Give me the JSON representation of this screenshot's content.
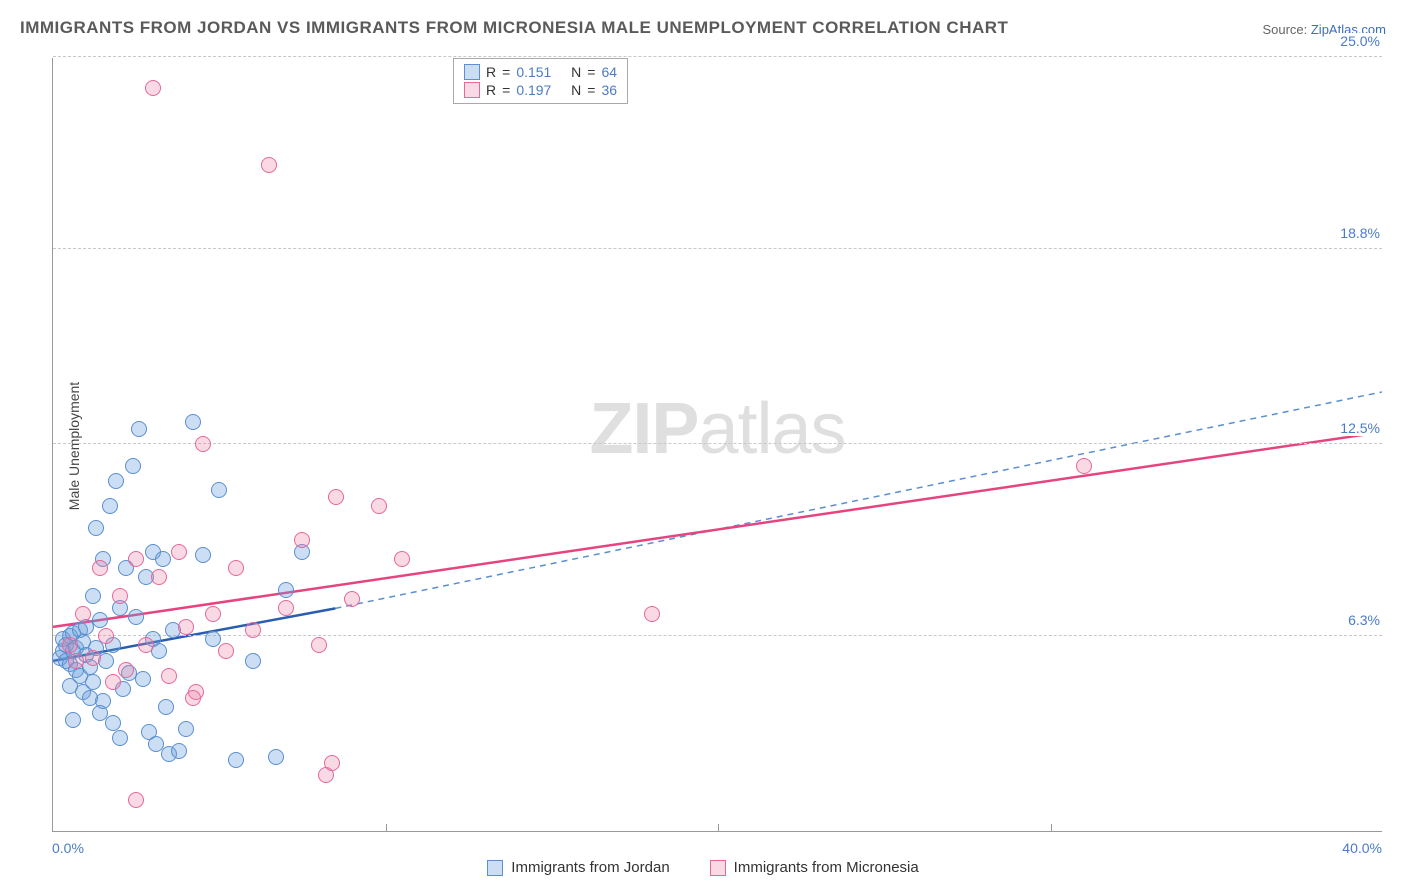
{
  "title": "IMMIGRANTS FROM JORDAN VS IMMIGRANTS FROM MICRONESIA MALE UNEMPLOYMENT CORRELATION CHART",
  "source_prefix": "Source: ",
  "source_name": "ZipAtlas.com",
  "ylabel": "Male Unemployment",
  "watermark_bold": "ZIP",
  "watermark_rest": "atlas",
  "chart": {
    "type": "scatter",
    "xlim": [
      0,
      40
    ],
    "ylim": [
      0,
      25
    ],
    "x_tick_marks": [
      10,
      20,
      30
    ],
    "x_end_labels": [
      {
        "v": 0,
        "label": "0.0%"
      },
      {
        "v": 40,
        "label": "40.0%"
      }
    ],
    "y_ticks": [
      {
        "v": 6.3,
        "label": "6.3%"
      },
      {
        "v": 12.5,
        "label": "12.5%"
      },
      {
        "v": 18.8,
        "label": "18.8%"
      },
      {
        "v": 25.0,
        "label": "25.0%"
      }
    ],
    "background_color": "#ffffff",
    "grid_color": "#c8c8c8",
    "axis_color": "#999999",
    "tick_label_color": "#4a7bc8",
    "marker_radius": 8,
    "marker_border_width": 1.5,
    "series": [
      {
        "id": "jordan",
        "label": "Immigrants from Jordan",
        "fill": "rgba(110,160,220,0.35)",
        "stroke": "#5a8fd0",
        "R": "0.151",
        "N": "64",
        "reg_solid": {
          "x1": 0,
          "y1": 5.5,
          "x2": 8.5,
          "y2": 7.2,
          "color": "#2a5db0",
          "width": 2.5,
          "dash": false
        },
        "reg_dashed": {
          "x1": 8.5,
          "y1": 7.2,
          "x2": 40,
          "y2": 14.2,
          "color": "#5a8fd0",
          "width": 1.5,
          "dash": true
        },
        "points": [
          [
            0.2,
            5.6
          ],
          [
            0.3,
            5.8
          ],
          [
            0.3,
            6.2
          ],
          [
            0.4,
            5.5
          ],
          [
            0.4,
            6.0
          ],
          [
            0.5,
            5.4
          ],
          [
            0.5,
            6.3
          ],
          [
            0.5,
            4.7
          ],
          [
            0.6,
            5.8
          ],
          [
            0.6,
            6.4
          ],
          [
            0.7,
            5.2
          ],
          [
            0.7,
            5.9
          ],
          [
            0.8,
            6.5
          ],
          [
            0.8,
            5.0
          ],
          [
            0.9,
            6.1
          ],
          [
            0.9,
            4.5
          ],
          [
            1.0,
            5.7
          ],
          [
            1.0,
            6.6
          ],
          [
            1.1,
            5.3
          ],
          [
            1.2,
            7.6
          ],
          [
            1.2,
            4.8
          ],
          [
            1.3,
            5.9
          ],
          [
            1.3,
            9.8
          ],
          [
            1.4,
            6.8
          ],
          [
            1.5,
            4.2
          ],
          [
            1.5,
            8.8
          ],
          [
            1.6,
            5.5
          ],
          [
            1.7,
            10.5
          ],
          [
            1.8,
            6.0
          ],
          [
            1.8,
            3.5
          ],
          [
            1.9,
            11.3
          ],
          [
            2.0,
            7.2
          ],
          [
            2.1,
            4.6
          ],
          [
            2.2,
            8.5
          ],
          [
            2.3,
            5.1
          ],
          [
            2.4,
            11.8
          ],
          [
            2.5,
            6.9
          ],
          [
            2.6,
            13.0
          ],
          [
            2.7,
            4.9
          ],
          [
            2.8,
            8.2
          ],
          [
            2.9,
            3.2
          ],
          [
            3.0,
            9.0
          ],
          [
            3.1,
            2.8
          ],
          [
            3.2,
            5.8
          ],
          [
            3.3,
            8.8
          ],
          [
            3.4,
            4.0
          ],
          [
            3.5,
            2.5
          ],
          [
            3.6,
            6.5
          ],
          [
            3.8,
            2.6
          ],
          [
            4.0,
            3.3
          ],
          [
            4.2,
            13.2
          ],
          [
            4.5,
            8.9
          ],
          [
            4.8,
            6.2
          ],
          [
            5.0,
            11.0
          ],
          [
            5.5,
            2.3
          ],
          [
            6.0,
            5.5
          ],
          [
            6.7,
            2.4
          ],
          [
            7.0,
            7.8
          ],
          [
            7.5,
            9.0
          ],
          [
            1.4,
            3.8
          ],
          [
            0.6,
            3.6
          ],
          [
            2.0,
            3.0
          ],
          [
            3.0,
            6.2
          ],
          [
            1.1,
            4.3
          ]
        ]
      },
      {
        "id": "micronesia",
        "label": "Immigrants from Micronesia",
        "fill": "rgba(235,130,165,0.30)",
        "stroke": "#e6689b",
        "R": "0.197",
        "N": "36",
        "reg_solid": {
          "x1": 0,
          "y1": 6.6,
          "x2": 40,
          "y2": 12.9,
          "color": "#e6447e",
          "width": 2.5,
          "dash": false
        },
        "reg_dashed": null,
        "points": [
          [
            0.5,
            6.0
          ],
          [
            0.7,
            5.5
          ],
          [
            0.9,
            7.0
          ],
          [
            1.2,
            5.6
          ],
          [
            1.4,
            8.5
          ],
          [
            1.6,
            6.3
          ],
          [
            1.8,
            4.8
          ],
          [
            2.0,
            7.6
          ],
          [
            2.2,
            5.2
          ],
          [
            2.5,
            8.8
          ],
          [
            2.8,
            6.0
          ],
          [
            3.0,
            24.0
          ],
          [
            3.2,
            8.2
          ],
          [
            3.5,
            5.0
          ],
          [
            3.8,
            9.0
          ],
          [
            4.0,
            6.6
          ],
          [
            4.3,
            4.5
          ],
          [
            4.5,
            12.5
          ],
          [
            4.8,
            7.0
          ],
          [
            5.2,
            5.8
          ],
          [
            5.5,
            8.5
          ],
          [
            6.0,
            6.5
          ],
          [
            6.5,
            21.5
          ],
          [
            7.0,
            7.2
          ],
          [
            7.5,
            9.4
          ],
          [
            8.0,
            6.0
          ],
          [
            8.2,
            1.8
          ],
          [
            8.4,
            2.2
          ],
          [
            8.5,
            10.8
          ],
          [
            9.0,
            7.5
          ],
          [
            9.8,
            10.5
          ],
          [
            10.5,
            8.8
          ],
          [
            18.0,
            7.0
          ],
          [
            31.0,
            11.8
          ],
          [
            2.5,
            1.0
          ],
          [
            4.2,
            4.3
          ]
        ]
      }
    ]
  },
  "legend_top_labels": {
    "r_prefix": "R",
    "eq": " = ",
    "n_prefix": "N",
    "space": "  "
  },
  "legend_bottom_order": [
    "jordan",
    "micronesia"
  ]
}
